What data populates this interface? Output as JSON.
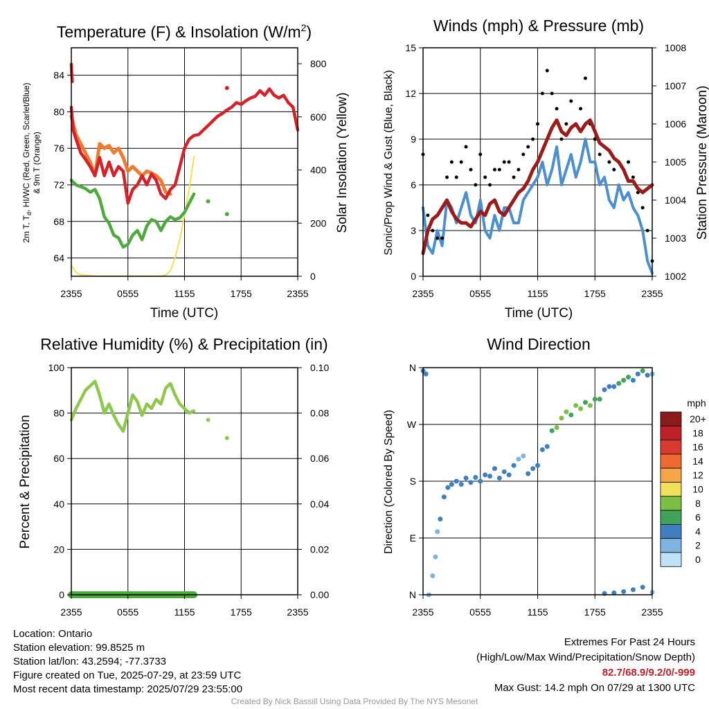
{
  "panels": {
    "temperature": {
      "title": "Temperature (F) & Insolation (W/m",
      "title_sup": "2",
      "title_close": ")",
      "ylabel_left_line1": "2m T, T",
      "ylabel_left_sub": "d",
      "ylabel_left_line1b": ", HI/WC (Red, Green, Scarlet/Blue)",
      "ylabel_left_line2": "& 9m T (Orange)",
      "ylabel_right": "Solar Insolation (Yellow)",
      "xlabel": "Time (UTC)"
    },
    "winds": {
      "title": "Winds (mph) & Pressure (mb)",
      "ylabel_left": "Sonic/Prop Wind & Gust (Blue, Black)",
      "ylabel_right": "Station Pressure (Maroon)",
      "xlabel": "Time (UTC)"
    },
    "humidity": {
      "title": "Relative Humidity (%) & Precipitation (in)",
      "ylabel_left": "Percent & Precipitation"
    },
    "direction": {
      "title": "Wind Direction",
      "ylabel_left": "Direction (Colored By Speed)",
      "legend_title": "mph"
    }
  },
  "footer": {
    "location": "Location: Ontario",
    "elevation": "Station elevation: 99.8525 m",
    "latlon": "Station lat/lon: 43.2594; -77.3733",
    "created": "Figure created on Tue, 2025-07-29, at 23:59 UTC",
    "recent": "Most recent data timestamp: 2025/07/29 23:55:00",
    "extremes_title": "Extremes For Past 24 Hours",
    "extremes_sub": "(High/Low/Max Wind/Precipitation/Snow Depth)",
    "extremes_values": "82.7/68.9/9.2/0/-999",
    "max_gust": "Max Gust: 14.2 mph On 07/29 at 1300 UTC",
    "credit": "Created By Nick Bassill Using Data Provided By The NYS Mesonet"
  },
  "colors": {
    "temperature": "#d4212a",
    "nine_m_temp": "#f07a30",
    "dewpoint": "#4daa3c",
    "insolation": "#f5e050",
    "wind": "#4a8fcf",
    "gust": "#000000",
    "pressure": "#9b1b1b",
    "humidity": "#8cc84b",
    "precip": "#4daa3c"
  },
  "chart_data": [
    {
      "type": "line",
      "panel": "temperature",
      "x_ticks": [
        "2355",
        "0555",
        "1155",
        "1755",
        "2355"
      ],
      "x_hours": [
        0,
        6,
        12,
        18,
        24
      ],
      "ylim": [
        62,
        87
      ],
      "yticks": [
        64,
        68,
        72,
        76,
        80,
        84
      ],
      "y2lim": [
        0,
        860
      ],
      "y2ticks": [
        0,
        200,
        400,
        600,
        800
      ],
      "grid": true,
      "series": [
        {
          "role": "temperature",
          "x": [
            0,
            0.2,
            0.5,
            1,
            1.5,
            2,
            2.5,
            3,
            3.5,
            4,
            4.5,
            5,
            5.5,
            6,
            6.5,
            7,
            7.5,
            8,
            8.5,
            9,
            9.5,
            10,
            10.5,
            11,
            11.5,
            12,
            12.5,
            13,
            13.5,
            14,
            14.5,
            15,
            15.5,
            16,
            16.5,
            17,
            17.5,
            18,
            18.5,
            19,
            19.5,
            20,
            20.5,
            21,
            21.5,
            22,
            22.5,
            23,
            23.5,
            24
          ],
          "y": [
            80.5,
            78,
            77,
            75.5,
            74.8,
            74,
            73,
            75,
            73,
            74.5,
            73,
            74,
            73.5,
            70,
            71.5,
            72,
            73,
            72,
            73.2,
            72.5,
            71,
            70.5,
            71.5,
            72,
            74,
            76,
            77,
            77.4,
            77.5,
            78,
            78.5,
            79,
            79.5,
            79.8,
            80.2,
            80.5,
            81,
            80.8,
            81.2,
            81.5,
            81.7,
            82.3,
            81.8,
            82.5,
            81.8,
            81.5,
            81.8,
            81,
            80.5,
            78
          ]
        },
        {
          "role": "nine_m_temp",
          "x": [
            0,
            0.5,
            1,
            1.5,
            2,
            2.5,
            3,
            3.5,
            4,
            4.5,
            5,
            5.5,
            6,
            6.5,
            7,
            7.5,
            8,
            8.5,
            9,
            9.5,
            10,
            10.5
          ],
          "y": [
            79.5,
            77.5,
            76.5,
            75.5,
            74.5,
            73,
            76.5,
            76,
            76.3,
            75.5,
            76,
            75,
            73.5,
            74,
            73.5,
            73,
            73.5,
            73.3,
            73,
            72.5,
            71.2,
            71
          ]
        },
        {
          "role": "dewpoint",
          "x": [
            0,
            0.5,
            1,
            1.5,
            2,
            2.5,
            3,
            3.5,
            4,
            4.5,
            5,
            5.5,
            6,
            6.5,
            7,
            7.5,
            8,
            8.5,
            9,
            9.5,
            10,
            10.5,
            11,
            11.5,
            12,
            12.5,
            13,
            14.5,
            16.5
          ],
          "y": [
            72.5,
            72,
            71.8,
            71.6,
            71.2,
            71.5,
            70.5,
            68.5,
            67.8,
            66.5,
            66.2,
            65.2,
            65.5,
            66.5,
            67,
            66,
            67.5,
            68.2,
            68,
            67,
            68,
            68.5,
            68.2,
            68.4,
            69,
            70,
            71,
            70.2,
            68.8
          ]
        },
        {
          "role": "insolation",
          "x": [
            0,
            0.5,
            1,
            2,
            3,
            4,
            5,
            6,
            7,
            8,
            9,
            9.5,
            10,
            10.5,
            11,
            11.5,
            12,
            12.5,
            13
          ],
          "y": [
            40,
            15,
            5,
            2,
            0,
            0,
            0,
            0,
            0,
            0,
            0,
            0,
            5,
            20,
            70,
            140,
            230,
            330,
            450
          ]
        }
      ]
    },
    {
      "type": "line",
      "panel": "winds",
      "x_ticks": [
        "2355",
        "0555",
        "1155",
        "1755",
        "2355"
      ],
      "x_hours": [
        0,
        6,
        12,
        18,
        24
      ],
      "ylim": [
        0,
        15
      ],
      "yticks": [
        0,
        3,
        6,
        9,
        12,
        15
      ],
      "y2lim": [
        1002,
        1008
      ],
      "y2ticks": [
        1002,
        1003,
        1004,
        1005,
        1006,
        1007,
        1008
      ],
      "grid": true,
      "series": [
        {
          "role": "wind",
          "x": [
            0,
            0.5,
            1,
            1.5,
            2,
            2.5,
            3,
            3.5,
            4,
            4.5,
            5,
            5.5,
            6,
            6.5,
            7,
            7.5,
            8,
            8.5,
            9,
            9.5,
            10,
            10.5,
            11,
            11.5,
            12,
            12.5,
            13,
            13.5,
            14,
            14.5,
            15,
            15.5,
            16,
            16.5,
            17,
            17.5,
            18,
            18.5,
            19,
            19.5,
            20,
            20.5,
            21,
            21.5,
            22,
            22.5,
            23,
            23.5,
            24
          ],
          "y": [
            4.5,
            2,
            1.5,
            3,
            2,
            5,
            4.5,
            3.5,
            4.5,
            5.5,
            4,
            3.5,
            5,
            3,
            2.5,
            4,
            3,
            4.5,
            4.5,
            3.5,
            3.5,
            5,
            5.5,
            6,
            6.5,
            7.5,
            6,
            7,
            8.5,
            6,
            7,
            8,
            6.5,
            7.5,
            9,
            7.5,
            7.5,
            6,
            6.5,
            5,
            4.5,
            6,
            5,
            5.5,
            4.5,
            4,
            3,
            1,
            0.2
          ]
        },
        {
          "role": "gust",
          "x": [
            0,
            0.5,
            1,
            1.5,
            2,
            2.5,
            3,
            3.5,
            4,
            4.5,
            5,
            5.5,
            6,
            6.5,
            7,
            7.5,
            8,
            8.5,
            9,
            9.5,
            10,
            10.5,
            11,
            11.5,
            12,
            12.5,
            13,
            13.5,
            14,
            14.5,
            15,
            15.5,
            16,
            16.5,
            17,
            17.5,
            18,
            18.5,
            19,
            19.5,
            20,
            20.5,
            21,
            21.5,
            22,
            22.5,
            23,
            23.5,
            24
          ],
          "y": [
            8,
            4,
            3,
            2.5,
            2.5,
            6.5,
            7.5,
            6.5,
            7.5,
            8.5,
            7,
            6,
            8,
            6.5,
            6,
            7,
            7,
            7.5,
            7.5,
            6.5,
            7,
            8,
            8.5,
            9,
            10,
            12,
            13.5,
            12,
            11,
            9,
            10,
            11.5,
            10,
            11,
            13,
            10,
            9,
            8,
            8.5,
            7.5,
            7,
            7.5,
            7,
            7.5,
            6.5,
            5.5,
            4.5,
            3,
            1
          ]
        },
        {
          "role": "pressure",
          "x": [
            0,
            0.5,
            1,
            1.5,
            2,
            2.5,
            3,
            3.5,
            4,
            4.5,
            5,
            5.5,
            6,
            6.5,
            7,
            7.5,
            8,
            8.5,
            9,
            9.5,
            10,
            10.5,
            11,
            11.5,
            12,
            12.5,
            13,
            13.5,
            14,
            14.5,
            15,
            15.5,
            16,
            16.5,
            17,
            17.5,
            18,
            18.5,
            19,
            19.5,
            20,
            20.5,
            21,
            21.5,
            22,
            22.5,
            23,
            23.5,
            24
          ],
          "y": [
            1002.6,
            1003.2,
            1003.5,
            1003.6,
            1003.8,
            1004.0,
            1003.7,
            1003.5,
            1003.4,
            1003.4,
            1003.3,
            1003.5,
            1003.7,
            1003.6,
            1003.9,
            1004.0,
            1003.7,
            1003.6,
            1003.8,
            1004.0,
            1004.2,
            1004.3,
            1004.5,
            1004.8,
            1005.0,
            1005.3,
            1005.6,
            1005.9,
            1006.1,
            1005.8,
            1005.7,
            1005.9,
            1006.0,
            1005.8,
            1006.0,
            1006.1,
            1005.8,
            1005.5,
            1005.4,
            1005.3,
            1005.1,
            1005.0,
            1004.8,
            1004.5,
            1004.5,
            1004.3,
            1004.2,
            1004.3,
            1004.4
          ]
        }
      ]
    },
    {
      "type": "line",
      "panel": "humidity",
      "x_ticks": [
        "2355",
        "0555",
        "1155",
        "1755",
        "2355"
      ],
      "x_hours": [
        0,
        6,
        12,
        18,
        24
      ],
      "ylim": [
        0,
        100
      ],
      "yticks": [
        0,
        20,
        40,
        60,
        80,
        100
      ],
      "y2lim": [
        0,
        0.1
      ],
      "y2ticks": [
        "0.00",
        "0.02",
        "0.04",
        "0.06",
        "0.08",
        "0.10"
      ],
      "grid": true,
      "series": [
        {
          "role": "humidity",
          "x": [
            0,
            0.5,
            1,
            1.5,
            2,
            2.5,
            3,
            3.5,
            4,
            4.5,
            5,
            5.5,
            6,
            6.5,
            7,
            7.5,
            8,
            8.5,
            9,
            9.5,
            10,
            10.5,
            11,
            11.5,
            12,
            12.5,
            13,
            14.5,
            16.5
          ],
          "y": [
            77,
            82,
            86,
            90,
            92,
            94,
            88,
            80,
            84,
            79,
            75,
            72,
            80,
            88,
            85,
            79,
            84,
            82,
            86,
            84,
            91,
            93,
            88,
            84,
            82,
            80,
            81,
            77,
            69
          ]
        },
        {
          "role": "precip",
          "x": [
            0,
            13
          ],
          "y": [
            0,
            0
          ]
        }
      ]
    },
    {
      "type": "scatter",
      "panel": "direction",
      "x_ticks": [
        "2355",
        "0555",
        "1155",
        "1755",
        "2355"
      ],
      "x_hours": [
        0,
        6,
        12,
        18,
        24
      ],
      "yticks": [
        "N",
        "E",
        "S",
        "W",
        "N"
      ],
      "ylim": [
        0,
        360
      ],
      "grid": true,
      "legend": {
        "title": "mph",
        "labels": [
          "20+",
          "18",
          "16",
          "14",
          "12",
          "10",
          "8",
          "6",
          "4",
          "2",
          "0"
        ],
        "colors": [
          "#8b1a1a",
          "#c0202a",
          "#d83a30",
          "#ee6a30",
          "#f6a548",
          "#f1e05a",
          "#7cbf45",
          "#3fa35a",
          "#3f7fbf",
          "#7cb6e0",
          "#c0e2f6"
        ]
      },
      "points": {
        "x": [
          0,
          0.3,
          0.6,
          1,
          1.3,
          1.5,
          1.8,
          2.2,
          2.6,
          3,
          3.5,
          4,
          4.5,
          5,
          5.5,
          6,
          6.5,
          7,
          7.5,
          8,
          8.5,
          9,
          9.5,
          10,
          10.5,
          11,
          11.5,
          12,
          12.5,
          13,
          13.5,
          14,
          14.5,
          15,
          15.5,
          16,
          16.5,
          17,
          17.5,
          18,
          18.5,
          19,
          19.5,
          20,
          20.5,
          21,
          21.5,
          22,
          22.5,
          23,
          23.5,
          24,
          19,
          20,
          21,
          22,
          23,
          24
        ],
        "y": [
          355,
          350,
          0,
          30,
          60,
          100,
          120,
          155,
          170,
          175,
          180,
          175,
          185,
          178,
          186,
          180,
          190,
          188,
          200,
          185,
          195,
          190,
          205,
          215,
          220,
          192,
          200,
          205,
          230,
          235,
          260,
          265,
          280,
          290,
          285,
          300,
          295,
          305,
          300,
          310,
          310,
          325,
          330,
          330,
          335,
          340,
          345,
          340,
          350,
          355,
          348,
          350,
          2,
          3,
          5,
          8,
          12,
          4
        ],
        "speeds": [
          4,
          4,
          1,
          2,
          2,
          2,
          3,
          3,
          4,
          4,
          3,
          4,
          4,
          3,
          3,
          4,
          4,
          3,
          4,
          4,
          3,
          4,
          3,
          2,
          2,
          4,
          4,
          3,
          4,
          4,
          6,
          7,
          8,
          7,
          6,
          8,
          7,
          6,
          7,
          6,
          5,
          4,
          4,
          4,
          6,
          5,
          6,
          4,
          4,
          6,
          4,
          1,
          4,
          4,
          4,
          3,
          4,
          2
        ]
      }
    }
  ]
}
